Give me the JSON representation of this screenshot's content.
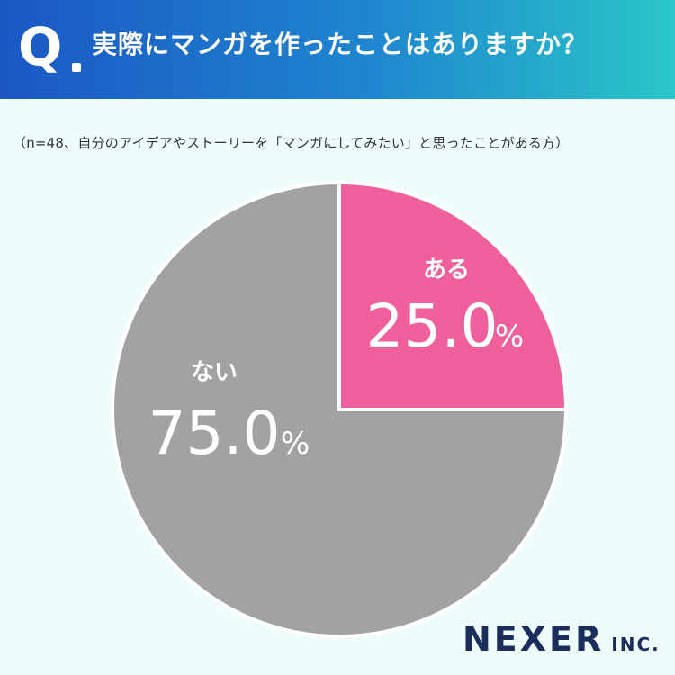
{
  "header": {
    "q_mark": "Q",
    "question": "実際にマンガを作ったことはありますか？"
  },
  "note": "（n=48、自分のアイデアやストーリーを「マンガにしてみたい」と思ったことがある方）",
  "chart_data": {
    "type": "pie",
    "slices": [
      {
        "label": "ある",
        "value": 25.0,
        "display": "25.0",
        "unit": "%",
        "color": "#ef5f9b"
      },
      {
        "label": "ない",
        "value": 75.0,
        "display": "75.0",
        "unit": "%",
        "color": "#a2a2a2"
      }
    ]
  },
  "logo": {
    "main": "NEXER",
    "sub": "INC."
  }
}
